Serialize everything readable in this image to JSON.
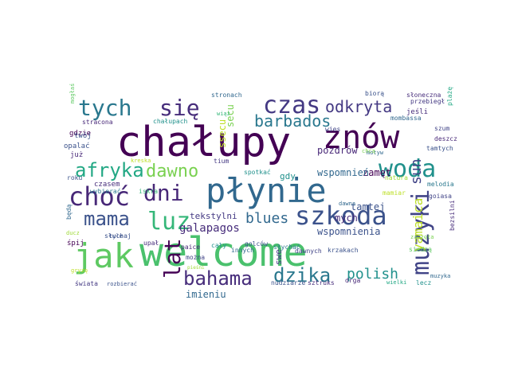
{
  "wordcloud": {
    "words": [
      {
        "text": "chałupy",
        "color": "#440154"
      },
      {
        "text": "welcome",
        "color": "#4ac16d"
      },
      {
        "text": "płynie",
        "color": "#31688e"
      },
      {
        "text": "znów",
        "color": "#440154"
      },
      {
        "text": "jak",
        "color": "#5ec962"
      },
      {
        "text": "muzyki",
        "color": "#414487"
      },
      {
        "text": "szkoda",
        "color": "#3b528b"
      },
      {
        "text": "woda",
        "color": "#21918c"
      },
      {
        "text": "czas",
        "color": "#443983"
      },
      {
        "text": "tych",
        "color": "#2a788e"
      },
      {
        "text": "się",
        "color": "#472d7b"
      },
      {
        "text": "choć",
        "color": "#482878"
      },
      {
        "text": "dni",
        "color": "#482878"
      },
      {
        "text": "luz",
        "color": "#35b779"
      },
      {
        "text": "mama",
        "color": "#3b528b"
      },
      {
        "text": "lat",
        "color": "#440154"
      },
      {
        "text": "afryka",
        "color": "#22a884"
      },
      {
        "text": "dawno",
        "color": "#7ad151"
      },
      {
        "text": "bahama",
        "color": "#472d7b"
      },
      {
        "text": "dzika",
        "color": "#2a788e"
      },
      {
        "text": "odkryta",
        "color": "#443983"
      },
      {
        "text": "barbados",
        "color": "#2a788e"
      },
      {
        "text": "blues",
        "color": "#31688e"
      },
      {
        "text": "polish",
        "color": "#21918c"
      },
      {
        "text": "sun",
        "color": "#414487"
      },
      {
        "text": "yamaica",
        "color": "#bddf26"
      },
      {
        "text": "galapagos",
        "color": "#472d7b"
      },
      {
        "text": "wspomnienia",
        "color": "#3b528b"
      },
      {
        "text": "pozdrów",
        "color": "#482878"
      },
      {
        "text": "zamęt",
        "color": "#440154"
      },
      {
        "text": "tamtej",
        "color": "#3b528b"
      },
      {
        "text": "mych",
        "color": "#472d7b"
      },
      {
        "text": "wspomnień",
        "color": "#31688e"
      },
      {
        "text": "tekstylni",
        "color": "#443983"
      },
      {
        "text": "imieniu",
        "color": "#31688e"
      },
      {
        "text": "swe",
        "color": "#443983"
      },
      {
        "text": "gdy",
        "color": "#21918c"
      },
      {
        "text": "secu",
        "color": "#7ad151"
      },
      {
        "text": "ssecu",
        "color": "#bddf26"
      },
      {
        "text": "gdzie",
        "color": "#440154"
      },
      {
        "text": "opalać",
        "color": "#3b528b"
      },
      {
        "text": "już",
        "color": "#482878"
      },
      {
        "text": "twój",
        "color": "#3b528b"
      },
      {
        "text": "stracona",
        "color": "#482878"
      },
      {
        "text": "chałupach",
        "color": "#21918c"
      },
      {
        "text": "czasem",
        "color": "#472d7b"
      },
      {
        "text": "wybierać",
        "color": "#2a788e"
      },
      {
        "text": "roku",
        "color": "#3b528b"
      },
      {
        "text": "iskra",
        "color": "#35b779"
      },
      {
        "text": "tium",
        "color": "#443983"
      },
      {
        "text": "spotkać",
        "color": "#21918c"
      },
      {
        "text": "innych",
        "color": "#31688e"
      },
      {
        "text": "słychać",
        "color": "#2a788e"
      },
      {
        "text": "krzakach",
        "color": "#3b528b"
      },
      {
        "text": "dawnych",
        "color": "#414487"
      },
      {
        "text": "dawna",
        "color": "#31688e"
      },
      {
        "text": "mamiar",
        "color": "#bddf26"
      },
      {
        "text": "natura",
        "color": "#a0da39"
      },
      {
        "text": "melodia",
        "color": "#2a788e"
      },
      {
        "text": "goiasa",
        "color": "#414487"
      },
      {
        "text": "bezsilni",
        "color": "#472d7b"
      },
      {
        "text": "słuchaj",
        "color": "#3b528b"
      },
      {
        "text": "tyle",
        "color": "#3b528b"
      },
      {
        "text": "śpij",
        "color": "#440154"
      },
      {
        "text": "będą",
        "color": "#31688e"
      },
      {
        "text": "ducz",
        "color": "#a0da39"
      },
      {
        "text": "upał",
        "color": "#472d7b"
      },
      {
        "text": "paice",
        "color": "#482878"
      },
      {
        "text": "można",
        "color": "#414487"
      },
      {
        "text": "cały",
        "color": "#21918c"
      },
      {
        "text": "rozbierać",
        "color": "#3b528b"
      },
      {
        "text": "świata",
        "color": "#443983"
      },
      {
        "text": "gryzę",
        "color": "#bddf26"
      },
      {
        "text": "nudziarze",
        "color": "#3b528b"
      },
      {
        "text": "sztruks",
        "color": "#472d7b"
      },
      {
        "text": "drga",
        "color": "#482878"
      },
      {
        "text": "wielki",
        "color": "#22a884"
      },
      {
        "text": "lecz",
        "color": "#21918c"
      },
      {
        "text": "muzyka",
        "color": "#31688e"
      },
      {
        "text": "siedzą",
        "color": "#5ec962"
      },
      {
        "text": "zaczęta",
        "color": "#7ad151"
      },
      {
        "text": "stronach",
        "color": "#31688e"
      },
      {
        "text": "biorą",
        "color": "#3b528b"
      },
      {
        "text": "słoneczna",
        "color": "#472d7b"
      },
      {
        "text": "przebiegł",
        "color": "#443983"
      },
      {
        "text": "jeśli",
        "color": "#472d7b"
      },
      {
        "text": "mombassa",
        "color": "#31688e"
      },
      {
        "text": "deszcz",
        "color": "#482878"
      },
      {
        "text": "tamtych",
        "color": "#3b528b"
      },
      {
        "text": "szum",
        "color": "#414487"
      },
      {
        "text": "plażę",
        "color": "#22a884"
      },
      {
        "text": "wiąż",
        "color": "#35b779"
      },
      {
        "text": "wies",
        "color": "#414487"
      },
      {
        "text": "motyw",
        "color": "#31688e"
      },
      {
        "text": "chcą",
        "color": "#7ad151"
      },
      {
        "text": "golców",
        "color": "#3b528b"
      },
      {
        "text": "kreska",
        "color": "#bddf26"
      },
      {
        "text": "pieśni",
        "color": "#a0da39"
      },
      {
        "text": "mogłaś",
        "color": "#5ec962"
      }
    ]
  }
}
